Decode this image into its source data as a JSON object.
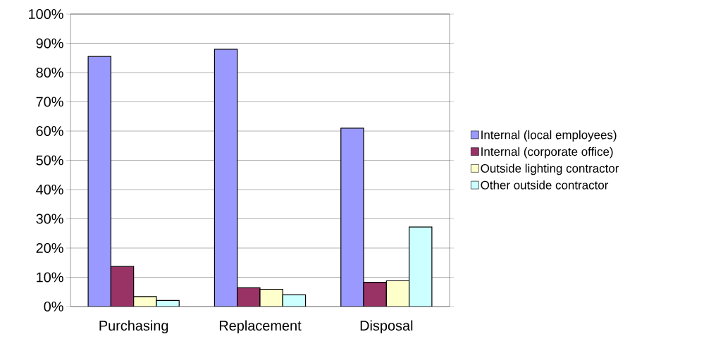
{
  "chart_data": {
    "type": "bar",
    "categories": [
      "Purchasing",
      "Replacement",
      "Disposal"
    ],
    "series": [
      {
        "name": "Internal (local employees)",
        "color": "#9999ff",
        "values": [
          85.5,
          88,
          61
        ]
      },
      {
        "name": "Internal (corporate office)",
        "color": "#993366",
        "values": [
          13.7,
          6.4,
          8.3
        ]
      },
      {
        "name": "Outside lighting contractor",
        "color": "#ffffcc",
        "values": [
          3.4,
          5.9,
          8.8
        ]
      },
      {
        "name": "Other outside contractor",
        "color": "#ccffff",
        "values": [
          2.1,
          4,
          27.2
        ]
      }
    ],
    "ylim": [
      0,
      100
    ],
    "yticks": [
      {
        "value": 0,
        "label": "0%"
      },
      {
        "value": 10,
        "label": "10%"
      },
      {
        "value": 20,
        "label": "20%"
      },
      {
        "value": 30,
        "label": "30%"
      },
      {
        "value": 40,
        "label": "40%"
      },
      {
        "value": 50,
        "label": "50%"
      },
      {
        "value": 60,
        "label": "60%"
      },
      {
        "value": 70,
        "label": "70%"
      },
      {
        "value": 80,
        "label": "80%"
      },
      {
        "value": 90,
        "label": "90%"
      },
      {
        "value": 100,
        "label": "100%"
      }
    ],
    "grid": "y",
    "legend": "right"
  }
}
